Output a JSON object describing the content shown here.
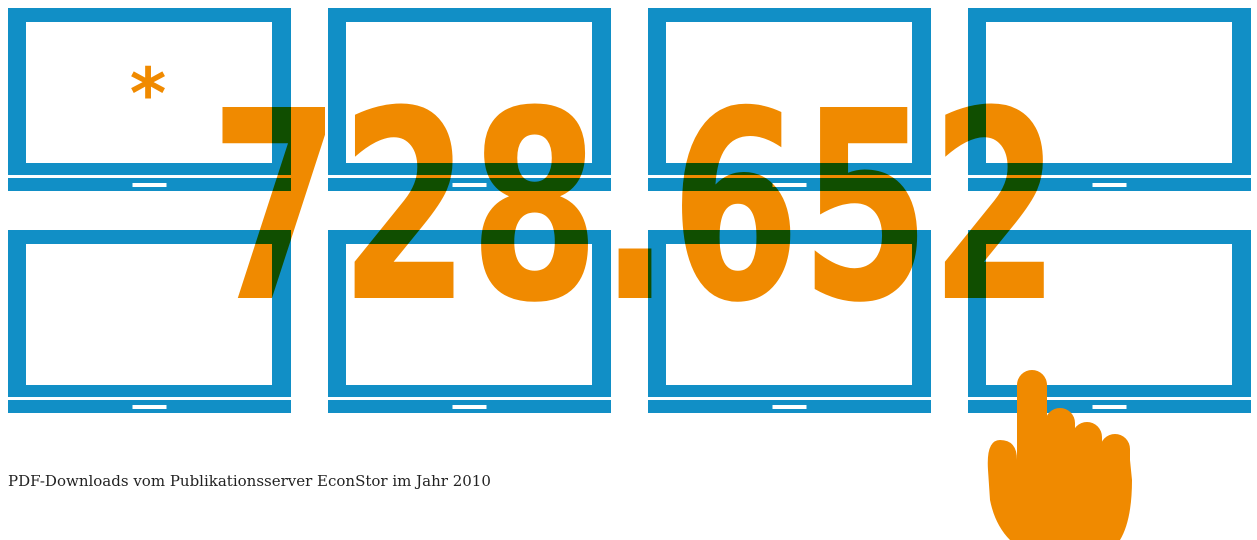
{
  "headline": {
    "number": "728.652",
    "marker": "*"
  },
  "caption": "PDF-Downloads vom Publikationsserver EconStor im Jahr 2010"
}
